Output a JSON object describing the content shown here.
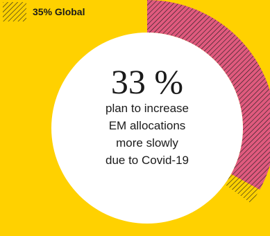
{
  "chart_data": {
    "type": "pie",
    "series": [
      {
        "name": "35% Global",
        "value": 35
      }
    ],
    "center_value": "33 %",
    "center_value_numeric": 33,
    "center_caption": [
      "plan to increase",
      "EM allocations",
      "more slowly",
      "due to Covid-19"
    ],
    "legend": "top-left"
  },
  "colors": {
    "background": "#FFD100",
    "global_arc": "#E05A7E",
    "inner_arc": "#FFD100",
    "hatch": "#1a1a1a",
    "center_fill": "#FFFFFF"
  }
}
